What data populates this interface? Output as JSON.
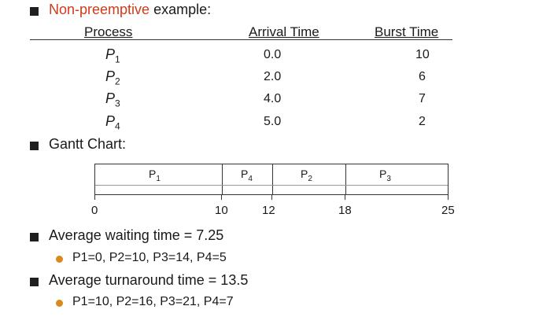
{
  "colors": {
    "accent": "#d13a1a",
    "bullet_l1": "#1f1f1f",
    "bullet_l2": "#d98a1c"
  },
  "title": {
    "highlight": "Non-preemptive",
    "rest": " example:"
  },
  "table": {
    "headers": [
      "Process",
      "Arrival Time",
      "Burst Time"
    ],
    "rows": [
      {
        "p": "P",
        "sub": "1",
        "arrival": "0.0",
        "burst": "10"
      },
      {
        "p": "P",
        "sub": "2",
        "arrival": "2.0",
        "burst": "6"
      },
      {
        "p": "P",
        "sub": "3",
        "arrival": "4.0",
        "burst": "7"
      },
      {
        "p": "P",
        "sub": "4",
        "arrival": "5.0",
        "burst": "2"
      }
    ]
  },
  "gantt": {
    "heading": "Gantt Chart:",
    "segments": [
      {
        "p": "P",
        "sub": "1"
      },
      {
        "p": "P",
        "sub": "4"
      },
      {
        "p": "P",
        "sub": "2"
      },
      {
        "p": "P",
        "sub": "3"
      }
    ],
    "ticks": [
      "0",
      "10",
      "12",
      "18",
      "25"
    ]
  },
  "waiting": {
    "label": "Average waiting time = 7.25",
    "detail": "P1=0, P2=10, P3=14, P4=5"
  },
  "turnaround": {
    "label": "Average turnaround time = 13.5",
    "detail": "P1=10, P2=16, P3=21, P4=7"
  }
}
